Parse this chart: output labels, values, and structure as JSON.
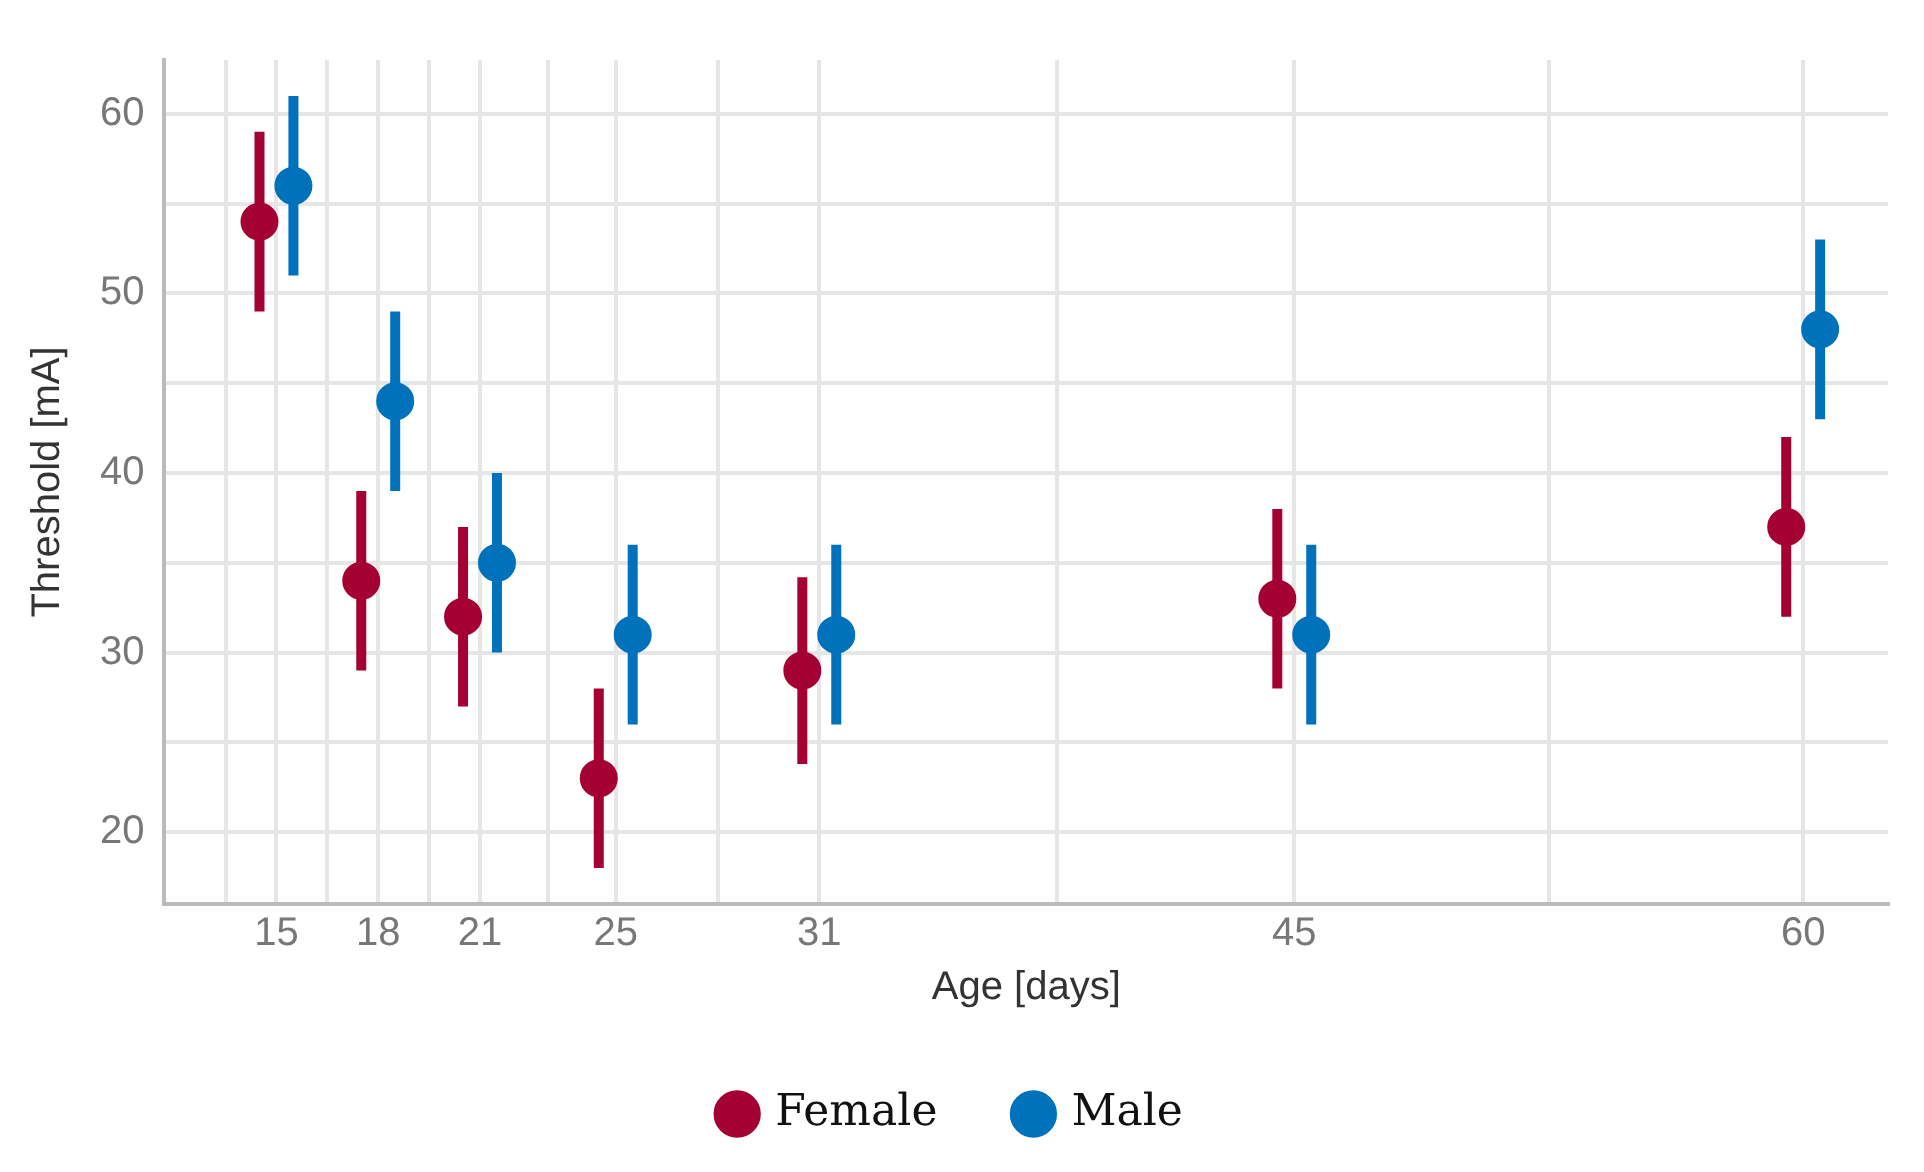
{
  "chart_data": {
    "type": "scatter",
    "xlabel": "Age [days]",
    "ylabel": "Threshold [mA]",
    "xlim": [
      11.7,
      62.5
    ],
    "xticks": [
      {
        "value": 13.5,
        "label": null
      },
      15,
      {
        "value": 16.5,
        "label": null
      },
      18,
      {
        "value": 19.5,
        "label": null
      },
      21,
      {
        "value": 23,
        "label": null
      },
      25,
      {
        "value": 28,
        "label": null
      },
      31,
      {
        "value": 38,
        "label": null
      },
      45,
      {
        "value": 52.5,
        "label": null
      },
      60
    ],
    "ylim": [
      16,
      63
    ],
    "yticks": [
      20,
      {
        "value": 25,
        "label": null
      },
      30,
      {
        "value": 35,
        "label": null
      },
      40,
      {
        "value": 45,
        "label": null
      },
      50,
      {
        "value": 55,
        "label": null
      },
      60
    ],
    "series": [
      {
        "name": "Female",
        "color": "#a50034",
        "x": [
          14.5,
          17.5,
          20.5,
          24.5,
          30.5,
          44.5,
          59.5
        ],
        "values": [
          54,
          34,
          32,
          23,
          29,
          33,
          37
        ],
        "errors": [
          5,
          5,
          5,
          5,
          5.2,
          5,
          5
        ]
      },
      {
        "name": "Male",
        "color": "#0072bc",
        "x": [
          15.5,
          18.5,
          21.5,
          25.5,
          31.5,
          45.5,
          60.5
        ],
        "values": [
          56,
          44,
          35,
          31,
          31,
          31,
          48
        ],
        "errors": [
          5,
          5,
          5,
          5,
          5,
          5,
          5
        ]
      }
    ],
    "marker": "circle",
    "grid": true,
    "legend": "bottom"
  }
}
